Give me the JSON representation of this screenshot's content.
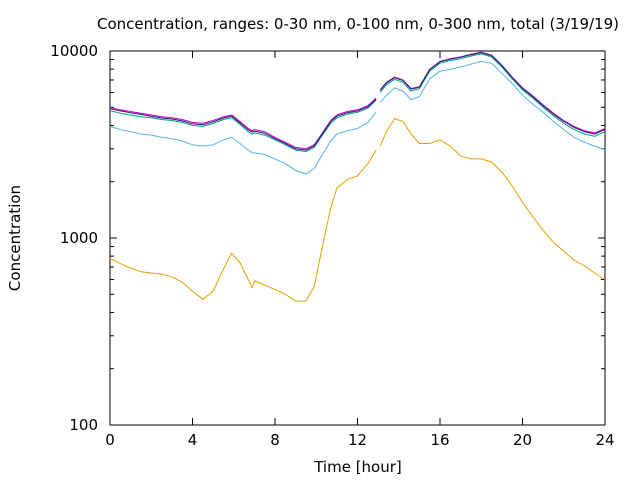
{
  "chart_data": {
    "type": "line",
    "title": "Concentration, ranges: 0-30 nm, 0-100 nm, 0-300 nm, total (3/19/19)",
    "xlabel": "Time [hour]",
    "ylabel": "Concentration",
    "xlim": [
      0,
      24
    ],
    "ylim": [
      100,
      10000
    ],
    "yscale": "log",
    "grid": false,
    "xticks": [
      0,
      4,
      8,
      12,
      16,
      20,
      24
    ],
    "xtick_labels": [
      "0",
      "4",
      "8",
      "12",
      "16",
      "20",
      "24"
    ],
    "yticks": [
      100,
      1000,
      10000
    ],
    "ytick_labels": [
      "100",
      "1000",
      "10000"
    ],
    "series": [
      {
        "color": "#e5a000",
        "x": [
          0,
          0.5,
          1,
          1.5,
          2,
          2.5,
          3,
          3.5,
          4,
          4.5,
          5,
          5.5,
          5.9,
          6.3,
          6.7,
          6.9,
          7,
          7.5,
          8,
          8.5,
          9,
          9.5,
          9.9,
          10.3,
          10.7,
          11,
          11.5,
          12,
          12.5,
          12.9,
          null,
          13.1,
          13.4,
          13.8,
          14.2,
          14.6,
          15,
          15.5,
          16,
          16.5,
          17,
          17.5,
          18,
          18.5,
          19,
          19.5,
          20,
          20.5,
          21,
          21.5,
          22,
          22.5,
          23,
          23.5,
          24
        ],
        "y": [
          780,
          730,
          690,
          660,
          650,
          640,
          620,
          580,
          520,
          470,
          520,
          680,
          830,
          740,
          600,
          540,
          590,
          560,
          530,
          500,
          460,
          460,
          550,
          900,
          1450,
          1850,
          2050,
          2150,
          2500,
          2950,
          null,
          3100,
          3700,
          4350,
          4200,
          3600,
          3200,
          3200,
          3350,
          3100,
          2750,
          2650,
          2650,
          2550,
          2250,
          1900,
          1550,
          1300,
          1100,
          950,
          850,
          760,
          710,
          650,
          600
        ]
      },
      {
        "color": "#56b4e9",
        "x": [
          0,
          0.5,
          1,
          1.5,
          2,
          2.5,
          3,
          3.5,
          4,
          4.5,
          5,
          5.5,
          5.9,
          6.3,
          6.7,
          6.9,
          7,
          7.5,
          8,
          8.5,
          9,
          9.5,
          9.9,
          10.3,
          10.7,
          11,
          11.5,
          12,
          12.5,
          12.9,
          null,
          13.1,
          13.4,
          13.8,
          14.2,
          14.6,
          15,
          15.5,
          16,
          16.5,
          17,
          17.5,
          18,
          18.5,
          19,
          19.5,
          20,
          20.5,
          21,
          21.5,
          22,
          22.5,
          23,
          23.5,
          24
        ],
        "y": [
          3950,
          3800,
          3700,
          3600,
          3550,
          3450,
          3400,
          3300,
          3150,
          3100,
          3150,
          3350,
          3450,
          3200,
          2950,
          2850,
          2850,
          2800,
          2650,
          2500,
          2300,
          2200,
          2350,
          2800,
          3300,
          3600,
          3750,
          3850,
          4150,
          4700,
          null,
          5300,
          5800,
          6350,
          6100,
          5500,
          5700,
          7100,
          7800,
          8000,
          8200,
          8500,
          8800,
          8600,
          7600,
          6700,
          5800,
          5200,
          4700,
          4200,
          3800,
          3450,
          3250,
          3100,
          2970
        ]
      },
      {
        "color": "#009e73",
        "x": [
          0,
          0.5,
          1,
          1.5,
          2,
          2.5,
          3,
          3.5,
          4,
          4.5,
          5,
          5.5,
          5.9,
          6.3,
          6.7,
          6.9,
          7,
          7.5,
          8,
          8.5,
          9,
          9.5,
          9.9,
          10.3,
          10.7,
          11,
          11.5,
          12,
          12.5,
          12.9,
          null,
          13.1,
          13.4,
          13.8,
          14.2,
          14.6,
          15,
          15.5,
          16,
          16.5,
          17,
          17.5,
          18,
          18.5,
          19,
          19.5,
          20,
          20.5,
          21,
          21.5,
          22,
          22.5,
          23,
          23.5,
          24
        ],
        "y": [
          4800,
          4650,
          4550,
          4450,
          4400,
          4300,
          4250,
          4150,
          4000,
          3950,
          4100,
          4300,
          4400,
          4050,
          3700,
          3600,
          3650,
          3550,
          3350,
          3150,
          2950,
          2900,
          3050,
          3550,
          4100,
          4400,
          4600,
          4700,
          4950,
          5450,
          null,
          6000,
          6600,
          7050,
          6800,
          6100,
          6300,
          7800,
          8600,
          8900,
          9100,
          9400,
          9650,
          9300,
          8200,
          7100,
          6200,
          5600,
          5000,
          4500,
          4100,
          3800,
          3600,
          3500,
          3700
        ]
      },
      {
        "color": "#cc00cc",
        "x": [
          0,
          0.5,
          1,
          1.5,
          2,
          2.5,
          3,
          3.5,
          4,
          4.5,
          5,
          5.5,
          5.9,
          6.3,
          6.7,
          6.9,
          7,
          7.5,
          8,
          8.5,
          9,
          9.5,
          9.9,
          10.3,
          10.7,
          11,
          11.5,
          12,
          12.5,
          12.9,
          null,
          13.1,
          13.4,
          13.8,
          14.2,
          14.6,
          15,
          15.5,
          16,
          16.5,
          17,
          17.5,
          18,
          18.5,
          19,
          19.5,
          20,
          20.5,
          21,
          21.5,
          22,
          22.5,
          23,
          23.5,
          24
        ],
        "y": [
          5000,
          4850,
          4750,
          4650,
          4550,
          4450,
          4400,
          4300,
          4150,
          4100,
          4250,
          4450,
          4550,
          4200,
          3850,
          3750,
          3800,
          3700,
          3450,
          3250,
          3050,
          3000,
          3150,
          3650,
          4250,
          4550,
          4750,
          4850,
          5100,
          5600,
          null,
          6200,
          6800,
          7250,
          7000,
          6300,
          6450,
          8000,
          8800,
          9100,
          9300,
          9600,
          9850,
          9500,
          8400,
          7250,
          6350,
          5750,
          5150,
          4650,
          4250,
          3950,
          3750,
          3650,
          3850
        ]
      },
      {
        "color": "#1f1f7a",
        "x": [
          0,
          0.5,
          1,
          1.5,
          2,
          2.5,
          3,
          3.5,
          4,
          4.5,
          5,
          5.5,
          5.9,
          6.3,
          6.7,
          6.9,
          7,
          7.5,
          8,
          8.5,
          9,
          9.5,
          9.9,
          10.3,
          10.7,
          11,
          11.5,
          12,
          12.5,
          12.9,
          null,
          13.1,
          13.4,
          13.8,
          14.2,
          14.6,
          15,
          15.5,
          16,
          16.5,
          17,
          17.5,
          18,
          18.5,
          19,
          19.5,
          20,
          20.5,
          21,
          21.5,
          22,
          22.5,
          23,
          23.5,
          24
        ],
        "y": [
          4920,
          4780,
          4680,
          4580,
          4480,
          4380,
          4330,
          4230,
          4080,
          4030,
          4180,
          4380,
          4480,
          4130,
          3790,
          3690,
          3730,
          3630,
          3400,
          3200,
          3000,
          2950,
          3100,
          3600,
          4200,
          4480,
          4680,
          4780,
          5030,
          5530,
          null,
          6150,
          6750,
          7200,
          6950,
          6250,
          6400,
          7950,
          8750,
          9050,
          9250,
          9550,
          9800,
          9450,
          8350,
          7200,
          6300,
          5700,
          5100,
          4600,
          4200,
          3900,
          3700,
          3600,
          3800
        ]
      }
    ]
  }
}
